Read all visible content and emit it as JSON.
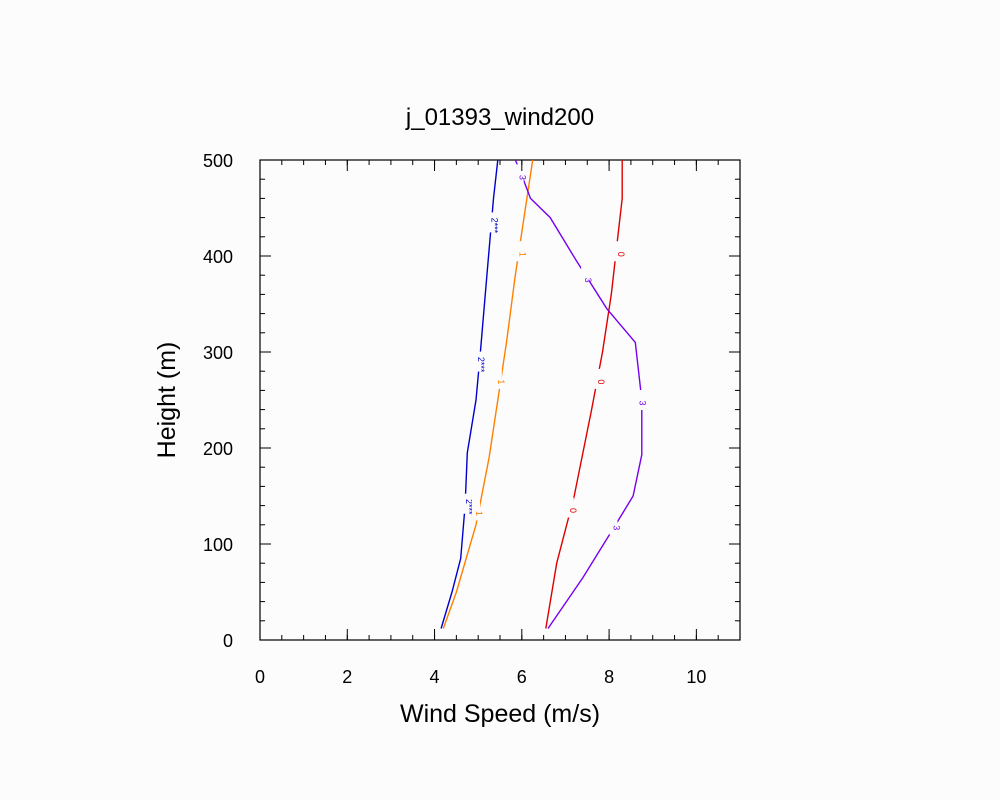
{
  "chart_data": {
    "type": "line",
    "title": "j_01393_wind200",
    "xlabel": "Wind Speed (m/s)",
    "ylabel": "Height (m)",
    "xlim": [
      0,
      11
    ],
    "ylim": [
      0,
      500
    ],
    "xticks": [
      0,
      2,
      4,
      6,
      8,
      10
    ],
    "yticks": [
      0,
      100,
      200,
      300,
      400,
      500
    ],
    "grid": false,
    "series": [
      {
        "label": "2***",
        "color": "#0000cc",
        "points": [
          [
            4.15,
            12
          ],
          [
            4.4,
            50
          ],
          [
            4.6,
            85
          ],
          [
            4.7,
            140
          ],
          [
            4.75,
            195
          ],
          [
            4.95,
            250
          ],
          [
            5.05,
            300
          ],
          [
            5.2,
            380
          ],
          [
            5.35,
            460
          ],
          [
            5.45,
            500
          ]
        ],
        "label_at": [
          [
            4.72,
            142
          ],
          [
            5.0,
            290
          ],
          [
            5.3,
            435
          ]
        ]
      },
      {
        "label": "1",
        "color": "#ff8000",
        "points": [
          [
            4.2,
            12
          ],
          [
            4.5,
            50
          ],
          [
            4.95,
            120
          ],
          [
            5.25,
            190
          ],
          [
            5.45,
            250
          ],
          [
            5.65,
            310
          ],
          [
            5.85,
            380
          ],
          [
            6.05,
            440
          ],
          [
            6.25,
            500
          ]
        ],
        "label_at": [
          [
            4.95,
            135
          ],
          [
            5.45,
            272
          ],
          [
            5.95,
            405
          ]
        ]
      },
      {
        "label": "0",
        "color": "#dd0000",
        "points": [
          [
            6.55,
            12
          ],
          [
            6.8,
            80
          ],
          [
            7.2,
            150
          ],
          [
            7.6,
            240
          ],
          [
            7.85,
            300
          ],
          [
            8.05,
            360
          ],
          [
            8.2,
            420
          ],
          [
            8.3,
            460
          ],
          [
            8.3,
            500
          ]
        ],
        "label_at": [
          [
            7.1,
            138
          ],
          [
            7.75,
            272
          ],
          [
            8.2,
            405
          ]
        ]
      },
      {
        "label": "3",
        "color": "#7700ee",
        "points": [
          [
            6.6,
            12
          ],
          [
            7.4,
            65
          ],
          [
            8.15,
            120
          ],
          [
            8.55,
            150
          ],
          [
            8.75,
            193
          ],
          [
            8.75,
            250
          ],
          [
            8.6,
            310
          ],
          [
            7.95,
            345
          ],
          [
            7.25,
            395
          ],
          [
            6.65,
            440
          ],
          [
            6.2,
            460
          ],
          [
            5.95,
            490
          ],
          [
            5.85,
            500
          ]
        ],
        "label_at": [
          [
            8.1,
            120
          ],
          [
            8.7,
            250
          ],
          [
            7.45,
            378
          ],
          [
            5.95,
            485
          ]
        ]
      }
    ]
  }
}
